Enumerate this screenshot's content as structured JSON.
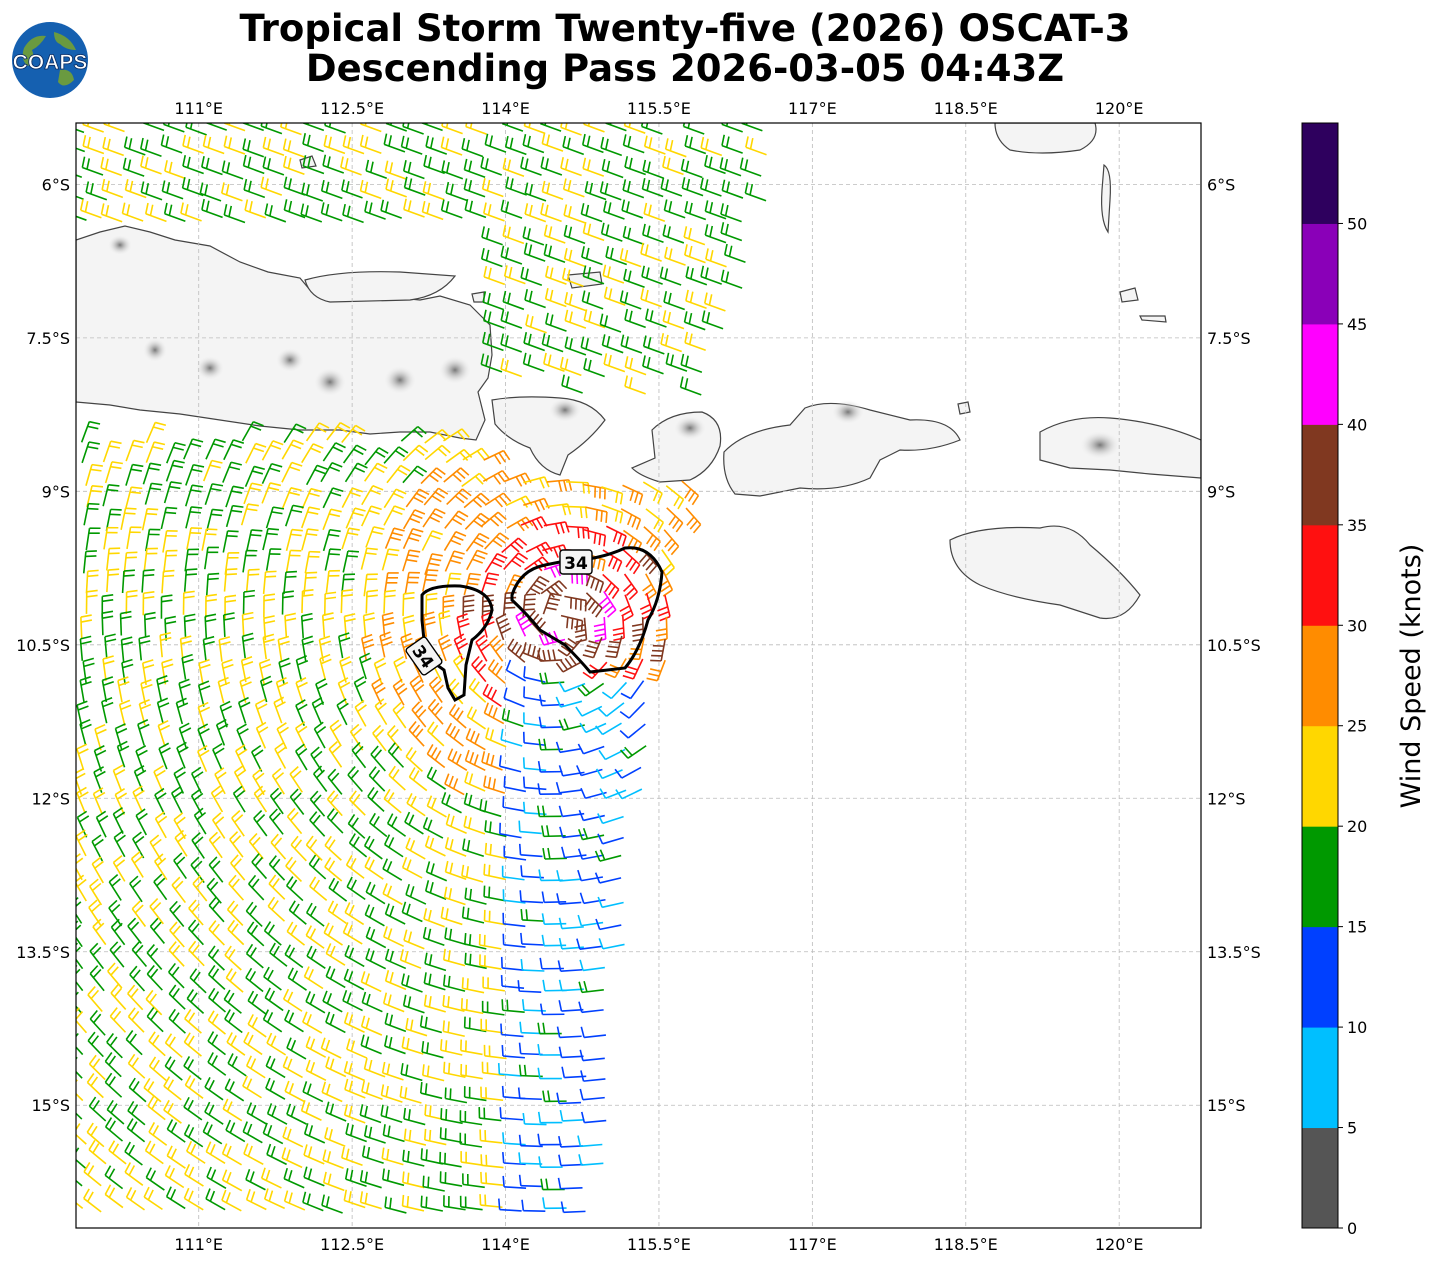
{
  "title": {
    "line1": "Tropical Storm Twenty-five (2026) OSCAT-3",
    "line2": "Descending Pass 2026-03-05 04:43Z"
  },
  "logo": {
    "text": "COAPS",
    "icon": "globe-logo-icon"
  },
  "map": {
    "lon_range": [
      109.8,
      120.8
    ],
    "lat_range": [
      -5.4,
      -16.2
    ],
    "lon_ticks": [
      "111°E",
      "112.5°E",
      "114°E",
      "115.5°E",
      "117°E",
      "118.5°E",
      "120°E"
    ],
    "lat_ticks": [
      "6°S",
      "7.5°S",
      "9°S",
      "10.5°S",
      "12°S",
      "13.5°S",
      "15°S"
    ],
    "gridlines": true,
    "contour_level": "34",
    "contour_labels": [
      "34",
      "34"
    ]
  },
  "colorbar": {
    "label": "Wind Speed (knots)",
    "ticks": [
      "0",
      "5",
      "10",
      "15",
      "20",
      "25",
      "30",
      "35",
      "40",
      "45",
      "50"
    ],
    "colors": [
      "#555555",
      "#00bfff",
      "#0040ff",
      "#009900",
      "#ffd700",
      "#ff8c00",
      "#ff1010",
      "#803820",
      "#ff00ff",
      "#8a00b8",
      "#2e005e"
    ]
  }
}
